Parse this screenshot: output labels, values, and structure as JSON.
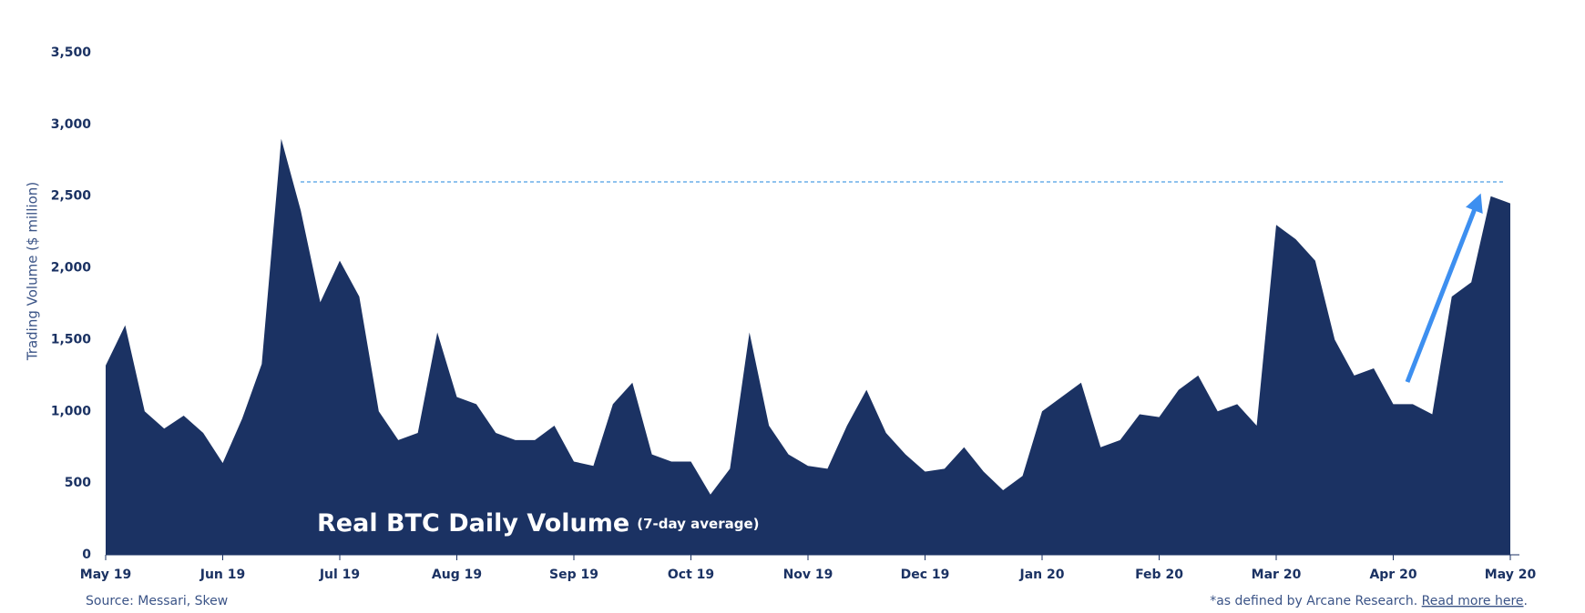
{
  "chart_data": {
    "type": "area",
    "title": "Real BTC Daily Volume",
    "subtitle": "(7-day average)",
    "y_label": "Trading Volume ($ million)",
    "source": "Source: Messari, Skew",
    "footnote": "*as defined by Arcane Research.",
    "footnote_link": "Read more here",
    "footnote_end": ".",
    "color": "#1b3263",
    "reference_line": 2600,
    "reference_color": "#6aaee8",
    "arrow_color": "#3d8ff0",
    "categories": [
      "May 19",
      null,
      null,
      null,
      null,
      null,
      "Jun 19",
      null,
      null,
      null,
      null,
      null,
      "Jul 19",
      null,
      null,
      null,
      null,
      null,
      "Aug 19",
      null,
      null,
      null,
      null,
      null,
      "Sep 19",
      null,
      null,
      null,
      null,
      null,
      "Oct 19",
      null,
      null,
      null,
      null,
      null,
      "Nov 19",
      null,
      null,
      null,
      null,
      null,
      "Dec 19",
      null,
      null,
      null,
      null,
      null,
      "Jan 20",
      null,
      null,
      null,
      null,
      null,
      "Feb 20",
      null,
      null,
      null,
      null,
      null,
      "Mar 20",
      null,
      null,
      null,
      null,
      null,
      "Apr 20",
      null,
      null,
      null,
      null,
      null,
      "May 20"
    ],
    "values": [
      1320,
      1600,
      1000,
      880,
      970,
      850,
      640,
      950,
      1330,
      2900,
      2400,
      1760,
      2050,
      1800,
      1000,
      800,
      850,
      1550,
      1100,
      1050,
      850,
      800,
      800,
      900,
      650,
      620,
      1050,
      1200,
      700,
      650,
      650,
      420,
      600,
      1550,
      900,
      700,
      620,
      600,
      900,
      1150,
      850,
      700,
      580,
      600,
      750,
      580,
      450,
      550,
      1000,
      1100,
      1200,
      750,
      800,
      980,
      960,
      1150,
      1250,
      1000,
      1050,
      900,
      2300,
      2200,
      2050,
      1500,
      1250,
      1300,
      1050,
      1050,
      980,
      1800,
      1900,
      2500,
      2450
    ],
    "ylim": [
      0,
      3500
    ],
    "yticks": [
      0,
      500,
      {
        "value": 1000,
        "label": "1,000"
      },
      {
        "value": 1500,
        "label": "1,500"
      },
      {
        "value": 2000,
        "label": "2,000"
      },
      {
        "value": 2500,
        "label": "2,500"
      },
      {
        "value": 3000,
        "label": "3,000"
      },
      {
        "value": 3500,
        "label": "3,500"
      }
    ]
  }
}
